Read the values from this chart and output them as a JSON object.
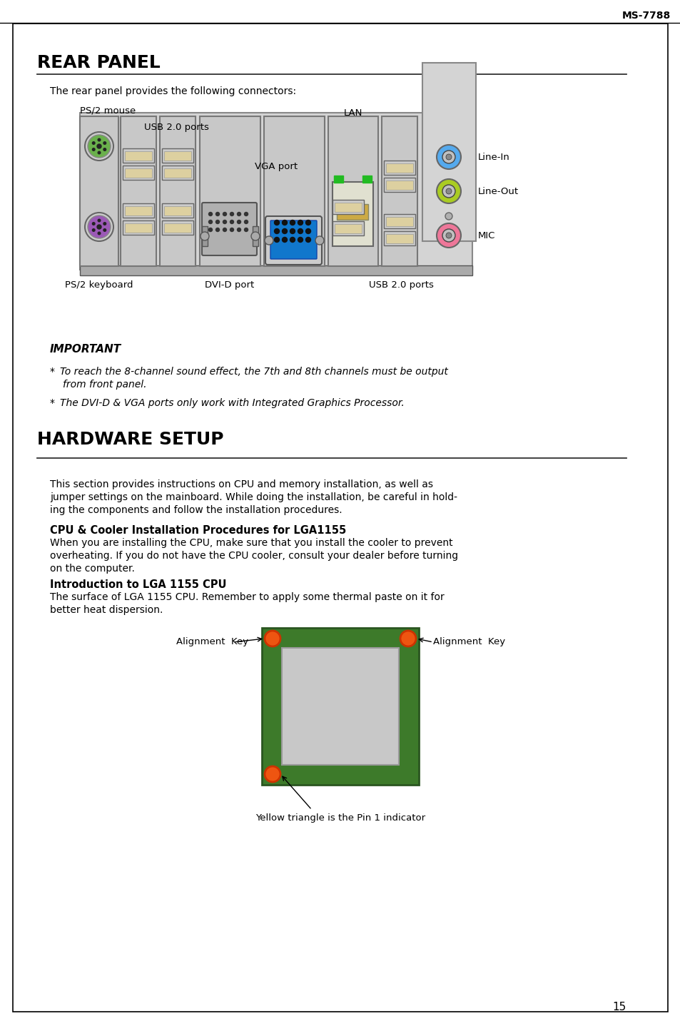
{
  "page_number": "15",
  "model": "MS-7788",
  "bg_color": "#ffffff",
  "section1_title": "REAR PANEL",
  "section1_intro": "The rear panel provides the following connectors:",
  "port_labels": {
    "ps2_mouse": "PS/2 mouse",
    "usb_top": "USB 2.0 ports",
    "vga": "VGA port",
    "lan": "LAN",
    "line_in": "Line-In",
    "line_out": "Line-Out",
    "mic": "MIC",
    "ps2_keyboard": "PS/2 keyboard",
    "dvi": "DVI-D port",
    "usb_bottom": "USB 2.0 ports"
  },
  "important_title": "IMPORTANT",
  "important_notes": [
    "*  To reach the 8-channel sound effect, the 7th and 8th channels must be output\n   from front panel.",
    "*  The DVI-D & VGA ports only work with Integrated Graphics Processor."
  ],
  "section2_title": "HARDWARE SETUP",
  "section2_body": [
    "This section provides instructions on CPU and memory installation, as well as",
    "jumper settings on the mainboard. While doing the installation, be careful in hold-",
    "ing the components and follow the installation procedures."
  ],
  "cpu_title": "CPU & Cooler Installation Procedures for LGA1155",
  "cpu_body": [
    "When you are installing the CPU, make sure that you install the cooler to prevent",
    "overheating. If you do not have the CPU cooler, consult your dealer before turning",
    "on the computer."
  ],
  "lga_title": "Introduction to LGA 1155 CPU",
  "lga_body": [
    "The surface of LGA 1155 CPU. Remember to apply some thermal paste on it for",
    "better heat dispersion."
  ],
  "alignment_key_label": "Alignment  Key",
  "yellow_triangle_label": "Yellow triangle is the Pin 1 indicator",
  "ps2_mouse_color": "#6ab04c",
  "ps2_keyboard_color": "#9b59b6",
  "line_in_color": "#55aaee",
  "line_out_color": "#aacc22",
  "mic_color": "#ee7799"
}
